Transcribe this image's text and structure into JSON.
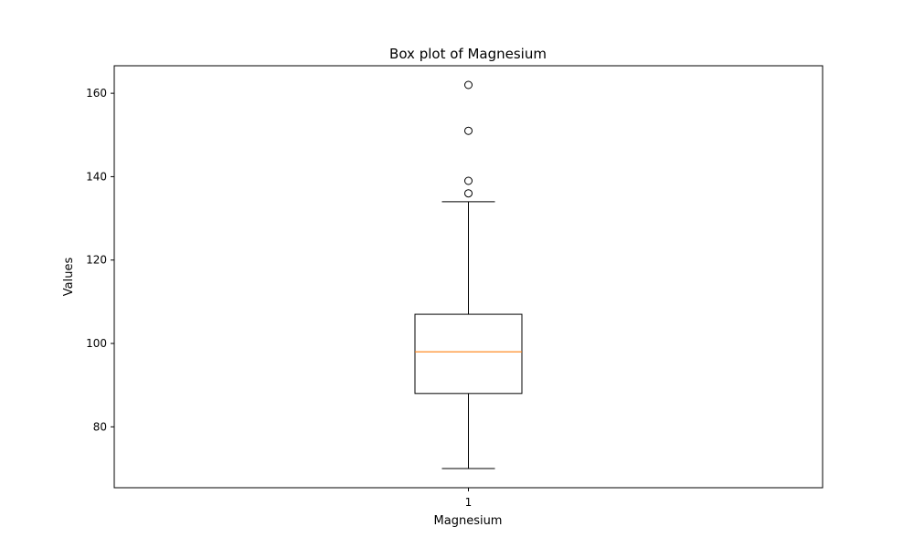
{
  "chart_data": {
    "type": "box",
    "title": "Box plot of Magnesium",
    "xlabel": "Magnesium",
    "ylabel": "Values",
    "ylim": [
      65.4,
      166.6
    ],
    "yticks": [
      80,
      100,
      120,
      140,
      160
    ],
    "categories": [
      "1"
    ],
    "grid": false,
    "boxes": [
      {
        "category": "1",
        "whisker_low": 70,
        "q1": 88,
        "median": 98,
        "q3": 107,
        "whisker_high": 134,
        "outliers": [
          136,
          139,
          151,
          162
        ]
      }
    ],
    "colors": {
      "box": "#000000",
      "median": "#ff7f0e",
      "whisker": "#000000",
      "outlier": "#000000"
    }
  }
}
